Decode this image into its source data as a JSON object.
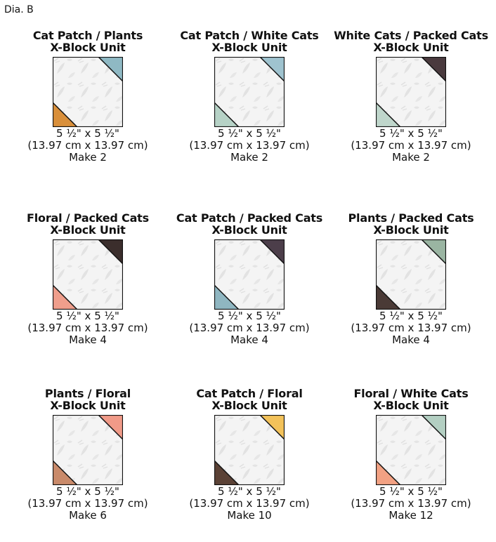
{
  "figure_label": "Dia. B",
  "units": [
    {
      "title_line1": "Cat Patch / Plants",
      "title_line2": "X-Block Unit",
      "size": "5 ½\" x 5 ½\"",
      "metric": "(13.97 cm x 13.97 cm)",
      "make": "Make 2",
      "corner_top": "#8fb9c4",
      "corner_bottom": "#d98f3a"
    },
    {
      "title_line1": "Cat Patch / White Cats",
      "title_line2": "X-Block Unit",
      "size": "5 ½\" x 5 ½\"",
      "metric": "(13.97 cm x 13.97 cm)",
      "make": "Make 2",
      "corner_top": "#9fc3cf",
      "corner_bottom": "#b6d2c6"
    },
    {
      "title_line1": "White Cats / Packed Cats",
      "title_line2": "X-Block Unit",
      "size": "5 ½\" x 5 ½\"",
      "metric": "(13.97 cm x 13.97 cm)",
      "make": "Make 2",
      "corner_top": "#4a3a3e",
      "corner_bottom": "#bfd6cb"
    },
    {
      "title_line1": "Floral / Packed Cats",
      "title_line2": "X-Block Unit",
      "size": "5 ½\" x 5 ½\"",
      "metric": "(13.97 cm x 13.97 cm)",
      "make": "Make 4",
      "corner_top": "#3b2e2c",
      "corner_bottom": "#ef9e8c"
    },
    {
      "title_line1": "Cat Patch / Packed Cats",
      "title_line2": "X-Block Unit",
      "size": "5 ½\" x 5 ½\"",
      "metric": "(13.97 cm x 13.97 cm)",
      "make": "Make 4",
      "corner_top": "#4c3e4a",
      "corner_bottom": "#8fb6c1"
    },
    {
      "title_line1": "Plants / Packed Cats",
      "title_line2": "X-Block Unit",
      "size": "5 ½\" x 5 ½\"",
      "metric": "(13.97 cm x 13.97 cm)",
      "make": "Make 4",
      "corner_top": "#9ab5a2",
      "corner_bottom": "#4a3a36"
    },
    {
      "title_line1": "Plants / Floral",
      "title_line2": "X-Block Unit",
      "size": "5 ½\" x 5 ½\"",
      "metric": "(13.97 cm x 13.97 cm)",
      "make": "Make 6",
      "corner_top": "#f09a88",
      "corner_bottom": "#c98a6a"
    },
    {
      "title_line1": "Cat Patch / Floral",
      "title_line2": "X-Block Unit",
      "size": "5 ½\" x 5 ½\"",
      "metric": "(13.97 cm x 13.97 cm)",
      "make": "Make 10",
      "corner_top": "#f3c25a",
      "corner_bottom": "#5b4236"
    },
    {
      "title_line1": "Floral / White Cats",
      "title_line2": "X-Block Unit",
      "size": "5 ½\" x 5 ½\"",
      "metric": "(13.97 cm x 13.97 cm)",
      "make": "Make 12",
      "corner_top": "#b3cfc2",
      "corner_bottom": "#f2a183"
    }
  ]
}
